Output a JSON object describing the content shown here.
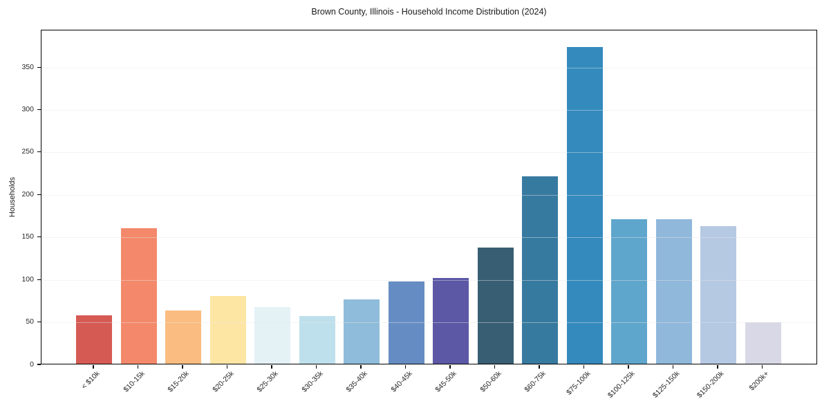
{
  "chart_data": {
    "type": "bar",
    "title": "Brown County, Illinois - Household Income Distribution (2024)",
    "ylabel": "Households",
    "xlabel": "",
    "categories": [
      "< $10k",
      "$10-15k",
      "$15-20k",
      "$20-25k",
      "$25-30k",
      "$30-35k",
      "$35-40k",
      "$40-45k",
      "$45-50k",
      "$50-60k",
      "$60-75k",
      "$75-100k",
      "$100-125k",
      "$125-150k",
      "$150-200k",
      "$200k+"
    ],
    "values": [
      57,
      160,
      63,
      80,
      67,
      56,
      76,
      97,
      101,
      137,
      221,
      373,
      170,
      170,
      162,
      49
    ],
    "bar_colors": [
      "#d65a54",
      "#f3896a",
      "#fabc80",
      "#fde6a4",
      "#e4f2f6",
      "#bee0ec",
      "#8ebcda",
      "#668dc3",
      "#5c58a6",
      "#385e73",
      "#377aa0",
      "#348abd",
      "#5fa6cd",
      "#90b8db",
      "#b5c9e3",
      "#d8d8e6"
    ],
    "yticks": [
      0,
      50,
      100,
      150,
      200,
      250,
      300,
      350
    ],
    "ylim": [
      0,
      394
    ],
    "grid": "horizontal",
    "gridline_color": "#e7e7e7",
    "gridline_over_bars_color": "rgba(231,231,231,0.45)",
    "axis_color": "#000000",
    "tick_label_color": "#262626",
    "title_color": "#1a1a1a",
    "background_color": "#ffffff",
    "legend": "none",
    "x_tick_rotation_deg": 45
  }
}
